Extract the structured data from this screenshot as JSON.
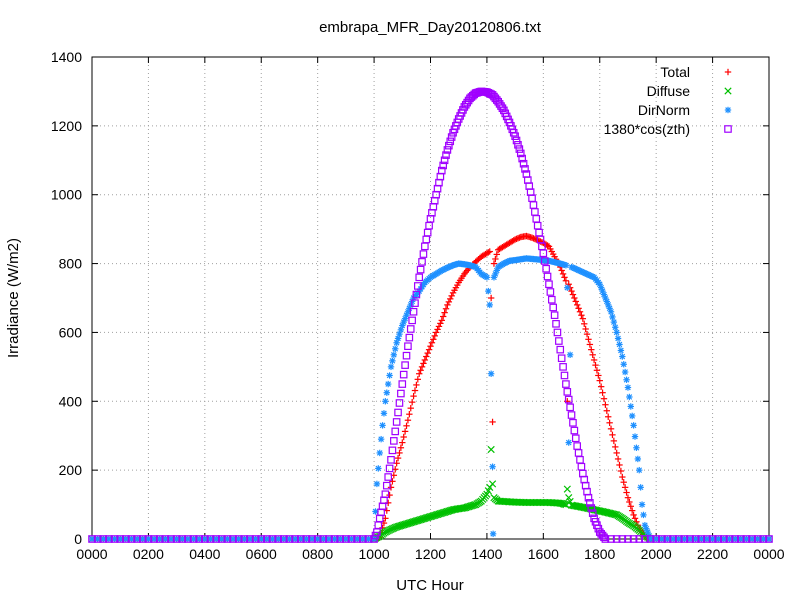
{
  "chart_data": {
    "type": "scatter",
    "title": "embrapa_MFR_Day20120806.txt",
    "xlabel": "UTC Hour",
    "ylabel": "Irradiance (W/m2)",
    "xlim": [
      0,
      24
    ],
    "ylim": [
      0,
      1400
    ],
    "x_ticks": [
      0,
      2,
      4,
      6,
      8,
      10,
      12,
      14,
      16,
      18,
      20,
      22,
      24
    ],
    "x_tick_labels": [
      "0000",
      "0200",
      "0400",
      "0600",
      "0800",
      "1000",
      "1200",
      "1400",
      "1600",
      "1800",
      "2000",
      "2200",
      "0000"
    ],
    "y_ticks": [
      0,
      200,
      400,
      600,
      800,
      1000,
      1200,
      1400
    ],
    "grid": true,
    "legend_position": "top-right",
    "series": [
      {
        "name": "Total",
        "color": "#ff0000",
        "marker": "plus",
        "points": [
          [
            0,
            0
          ],
          [
            10.0,
            0
          ],
          [
            10.2,
            5
          ],
          [
            10.4,
            60
          ],
          [
            10.6,
            150
          ],
          [
            10.8,
            220
          ],
          [
            11.0,
            280
          ],
          [
            11.2,
            345
          ],
          [
            11.4,
            415
          ],
          [
            11.6,
            480
          ],
          [
            11.8,
            520
          ],
          [
            12.0,
            560
          ],
          [
            12.2,
            600
          ],
          [
            12.4,
            635
          ],
          [
            12.6,
            680
          ],
          [
            12.8,
            715
          ],
          [
            13.0,
            745
          ],
          [
            13.2,
            770
          ],
          [
            13.4,
            790
          ],
          [
            13.6,
            805
          ],
          [
            13.8,
            820
          ],
          [
            14.0,
            830
          ],
          [
            14.1,
            835
          ],
          [
            14.15,
            700
          ],
          [
            14.2,
            340
          ],
          [
            14.25,
            800
          ],
          [
            14.4,
            840
          ],
          [
            14.8,
            860
          ],
          [
            15.0,
            870
          ],
          [
            15.2,
            877
          ],
          [
            15.4,
            880
          ],
          [
            15.6,
            875
          ],
          [
            15.8,
            868
          ],
          [
            16.0,
            860
          ],
          [
            16.2,
            850
          ],
          [
            16.4,
            820
          ],
          [
            16.6,
            790
          ],
          [
            16.8,
            750
          ],
          [
            16.85,
            400
          ],
          [
            16.9,
            740
          ],
          [
            17.0,
            720
          ],
          [
            17.2,
            680
          ],
          [
            17.4,
            640
          ],
          [
            17.6,
            580
          ],
          [
            17.8,
            520
          ],
          [
            18.0,
            460
          ],
          [
            18.2,
            390
          ],
          [
            18.4,
            320
          ],
          [
            18.6,
            250
          ],
          [
            18.8,
            180
          ],
          [
            19.0,
            120
          ],
          [
            19.2,
            70
          ],
          [
            19.4,
            30
          ],
          [
            19.6,
            8
          ],
          [
            19.8,
            0
          ],
          [
            24,
            0
          ]
        ]
      },
      {
        "name": "Diffuse",
        "color": "#00c000",
        "marker": "cross",
        "points": [
          [
            0,
            0
          ],
          [
            10.0,
            0
          ],
          [
            10.2,
            8
          ],
          [
            10.4,
            20
          ],
          [
            10.6,
            28
          ],
          [
            10.8,
            35
          ],
          [
            11.0,
            40
          ],
          [
            11.2,
            45
          ],
          [
            11.4,
            50
          ],
          [
            11.6,
            55
          ],
          [
            11.8,
            60
          ],
          [
            12.0,
            65
          ],
          [
            12.2,
            70
          ],
          [
            12.4,
            75
          ],
          [
            12.6,
            80
          ],
          [
            12.8,
            85
          ],
          [
            13.0,
            88
          ],
          [
            13.2,
            90
          ],
          [
            13.4,
            95
          ],
          [
            13.6,
            100
          ],
          [
            13.8,
            110
          ],
          [
            14.0,
            130
          ],
          [
            14.1,
            150
          ],
          [
            14.15,
            260
          ],
          [
            14.2,
            160
          ],
          [
            14.25,
            120
          ],
          [
            14.4,
            110
          ],
          [
            14.8,
            108
          ],
          [
            15.0,
            107
          ],
          [
            15.4,
            106
          ],
          [
            15.8,
            106
          ],
          [
            16.2,
            106
          ],
          [
            16.6,
            104
          ],
          [
            16.8,
            100
          ],
          [
            16.85,
            145
          ],
          [
            16.9,
            120
          ],
          [
            17.0,
            98
          ],
          [
            17.4,
            92
          ],
          [
            17.8,
            85
          ],
          [
            18.2,
            78
          ],
          [
            18.6,
            70
          ],
          [
            18.8,
            60
          ],
          [
            19.0,
            48
          ],
          [
            19.2,
            38
          ],
          [
            19.4,
            25
          ],
          [
            19.6,
            10
          ],
          [
            19.8,
            0
          ],
          [
            24,
            0
          ]
        ]
      },
      {
        "name": "DirNorm",
        "color": "#1e90ff",
        "marker": "star",
        "points": [
          [
            0,
            0
          ],
          [
            10.0,
            0
          ],
          [
            10.1,
            160
          ],
          [
            10.2,
            250
          ],
          [
            10.3,
            330
          ],
          [
            10.4,
            400
          ],
          [
            10.6,
            500
          ],
          [
            10.8,
            570
          ],
          [
            11.0,
            620
          ],
          [
            11.2,
            660
          ],
          [
            11.4,
            700
          ],
          [
            11.6,
            720
          ],
          [
            11.8,
            745
          ],
          [
            12.0,
            760
          ],
          [
            12.2,
            770
          ],
          [
            12.4,
            780
          ],
          [
            12.6,
            788
          ],
          [
            12.8,
            795
          ],
          [
            13.0,
            800
          ],
          [
            13.2,
            798
          ],
          [
            13.4,
            795
          ],
          [
            13.6,
            790
          ],
          [
            13.8,
            770
          ],
          [
            14.0,
            760
          ],
          [
            14.1,
            680
          ],
          [
            14.15,
            480
          ],
          [
            14.2,
            210
          ],
          [
            14.22,
            15
          ],
          [
            14.25,
            760
          ],
          [
            14.4,
            790
          ],
          [
            14.6,
            800
          ],
          [
            14.8,
            808
          ],
          [
            15.0,
            810
          ],
          [
            15.4,
            815
          ],
          [
            15.8,
            812
          ],
          [
            16.2,
            808
          ],
          [
            16.6,
            800
          ],
          [
            16.8,
            795
          ],
          [
            16.85,
            730
          ],
          [
            16.9,
            280
          ],
          [
            17.0,
            790
          ],
          [
            17.4,
            775
          ],
          [
            17.8,
            760
          ],
          [
            18.0,
            740
          ],
          [
            18.2,
            700
          ],
          [
            18.4,
            660
          ],
          [
            18.6,
            600
          ],
          [
            18.8,
            530
          ],
          [
            19.0,
            440
          ],
          [
            19.2,
            330
          ],
          [
            19.4,
            200
          ],
          [
            19.5,
            100
          ],
          [
            19.6,
            40
          ],
          [
            19.8,
            0
          ],
          [
            24,
            0
          ]
        ]
      },
      {
        "name": "1380*cos(zth)",
        "color": "#a000ff",
        "marker": "square",
        "points": [
          [
            0,
            0
          ],
          [
            10.0,
            0
          ],
          [
            10.1,
            20
          ],
          [
            10.2,
            60
          ],
          [
            10.4,
            130
          ],
          [
            10.6,
            230
          ],
          [
            10.8,
            340
          ],
          [
            11.0,
            450
          ],
          [
            11.2,
            560
          ],
          [
            11.4,
            660
          ],
          [
            11.6,
            760
          ],
          [
            11.8,
            850
          ],
          [
            12.0,
            930
          ],
          [
            12.2,
            1000
          ],
          [
            12.4,
            1070
          ],
          [
            12.6,
            1130
          ],
          [
            12.8,
            1180
          ],
          [
            13.0,
            1220
          ],
          [
            13.2,
            1255
          ],
          [
            13.4,
            1280
          ],
          [
            13.6,
            1295
          ],
          [
            13.8,
            1300
          ],
          [
            14.0,
            1298
          ],
          [
            14.2,
            1290
          ],
          [
            14.4,
            1270
          ],
          [
            14.6,
            1245
          ],
          [
            14.8,
            1210
          ],
          [
            15.0,
            1170
          ],
          [
            15.2,
            1120
          ],
          [
            15.4,
            1060
          ],
          [
            15.6,
            990
          ],
          [
            15.8,
            910
          ],
          [
            16.0,
            830
          ],
          [
            16.2,
            740
          ],
          [
            16.4,
            650
          ],
          [
            16.6,
            550
          ],
          [
            16.8,
            450
          ],
          [
            17.0,
            360
          ],
          [
            17.2,
            270
          ],
          [
            17.4,
            190
          ],
          [
            17.6,
            120
          ],
          [
            17.8,
            60
          ],
          [
            18.0,
            20
          ],
          [
            18.2,
            0
          ],
          [
            24,
            0
          ]
        ]
      }
    ]
  }
}
